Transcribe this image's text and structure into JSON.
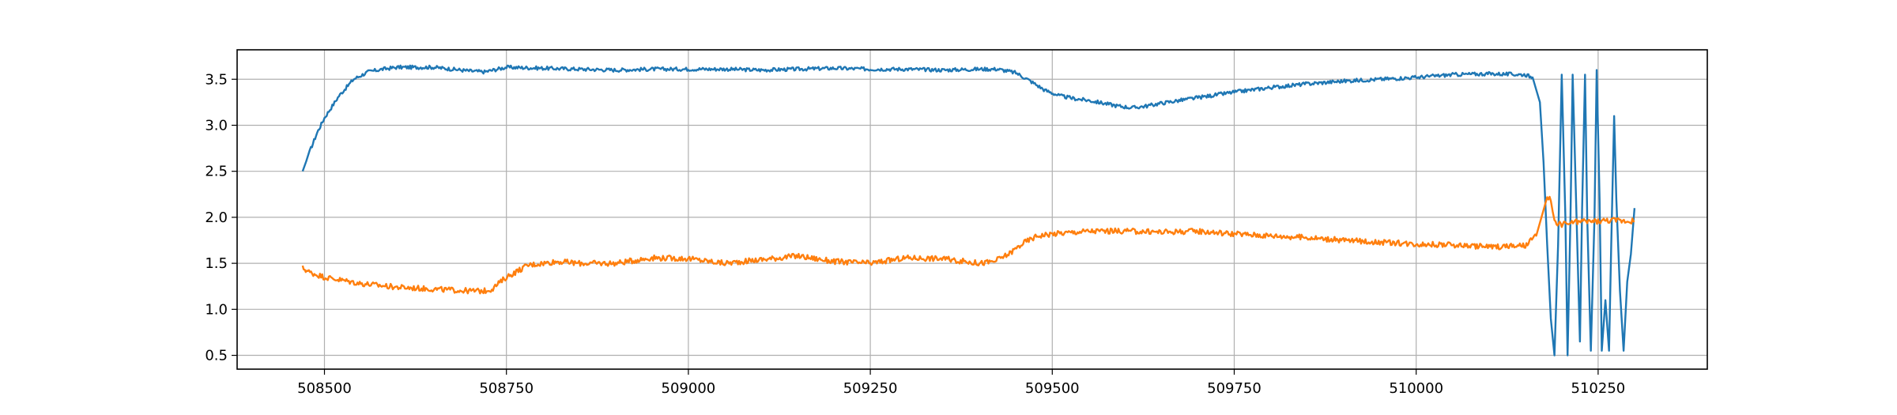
{
  "chart_data": {
    "type": "line",
    "title": "",
    "xlabel": "",
    "ylabel": "",
    "xlim": [
      508380,
      510400
    ],
    "ylim": [
      0.35,
      3.82
    ],
    "grid": true,
    "legend": "none",
    "x_ticks": [
      508500,
      508750,
      509000,
      509250,
      509500,
      509750,
      510000,
      510250
    ],
    "y_ticks": [
      0.5,
      1.0,
      1.5,
      2.0,
      2.5,
      3.0,
      3.5
    ],
    "x_tick_labels": [
      "508500",
      "508750",
      "509000",
      "509250",
      "509500",
      "509750",
      "510000",
      "510250"
    ],
    "y_tick_labels": [
      "0.5",
      "1.0",
      "1.5",
      "2.0",
      "2.5",
      "3.0",
      "3.5"
    ],
    "series": [
      {
        "color": "#1f77b4",
        "noise": 0.02,
        "x": [
          508470,
          508480,
          508490,
          508500,
          508520,
          508540,
          508560,
          508580,
          508600,
          508625,
          508650,
          508675,
          508700,
          508720,
          508750,
          508800,
          508850,
          508900,
          508950,
          509000,
          509050,
          509100,
          509150,
          509200,
          509250,
          509300,
          509350,
          509400,
          509425,
          509450,
          509470,
          509490,
          509510,
          509530,
          509550,
          509570,
          509590,
          509610,
          509630,
          509650,
          509700,
          509750,
          509800,
          509850,
          509900,
          509950,
          510000,
          510050,
          510100,
          510150,
          510160,
          510170,
          510175,
          510180,
          510185,
          510190,
          510195,
          510200,
          510205,
          510208,
          510212,
          510215,
          510220,
          510225,
          510228,
          510232,
          510235,
          510240,
          510245,
          510248,
          510252,
          510255,
          510260,
          510265,
          510268,
          510272,
          510275,
          510280,
          510285,
          510290,
          510295,
          510300
        ],
        "y": [
          2.5,
          2.72,
          2.92,
          3.08,
          3.32,
          3.5,
          3.58,
          3.61,
          3.63,
          3.63,
          3.63,
          3.61,
          3.59,
          3.58,
          3.63,
          3.62,
          3.61,
          3.6,
          3.61,
          3.61,
          3.61,
          3.6,
          3.61,
          3.62,
          3.61,
          3.61,
          3.6,
          3.61,
          3.61,
          3.57,
          3.48,
          3.38,
          3.32,
          3.29,
          3.27,
          3.24,
          3.21,
          3.19,
          3.21,
          3.24,
          3.3,
          3.36,
          3.41,
          3.45,
          3.48,
          3.5,
          3.52,
          3.55,
          3.56,
          3.55,
          3.52,
          3.25,
          2.6,
          1.7,
          0.9,
          0.5,
          1.7,
          3.55,
          2.0,
          0.5,
          2.0,
          3.55,
          2.1,
          0.65,
          2.1,
          3.55,
          2.0,
          0.55,
          2.0,
          3.6,
          2.2,
          0.55,
          1.1,
          0.55,
          1.7,
          3.1,
          2.2,
          1.2,
          0.55,
          1.3,
          1.6,
          2.1
        ]
      },
      {
        "color": "#ff7f0e",
        "noise": 0.03,
        "x": [
          508470,
          508480,
          508500,
          508550,
          508600,
          508650,
          508700,
          508720,
          508730,
          508750,
          508780,
          508820,
          508850,
          508900,
          508950,
          509000,
          509050,
          509100,
          509150,
          509200,
          509250,
          509300,
          509350,
          509400,
          509420,
          509440,
          509460,
          509480,
          509500,
          509550,
          509600,
          509650,
          509700,
          509750,
          509800,
          509850,
          509900,
          509950,
          510000,
          510050,
          510100,
          510150,
          510165,
          510175,
          510180,
          510185,
          510190,
          510200,
          510220,
          510250,
          510270,
          510290,
          510300
        ],
        "y": [
          1.45,
          1.4,
          1.35,
          1.28,
          1.24,
          1.22,
          1.2,
          1.2,
          1.22,
          1.35,
          1.48,
          1.52,
          1.5,
          1.5,
          1.56,
          1.55,
          1.5,
          1.54,
          1.58,
          1.52,
          1.5,
          1.56,
          1.55,
          1.5,
          1.52,
          1.6,
          1.72,
          1.8,
          1.82,
          1.85,
          1.85,
          1.84,
          1.85,
          1.82,
          1.8,
          1.78,
          1.75,
          1.73,
          1.71,
          1.7,
          1.68,
          1.69,
          1.8,
          2.08,
          2.22,
          2.18,
          1.95,
          1.92,
          1.95,
          1.96,
          1.97,
          1.96,
          1.96
        ]
      }
    ]
  }
}
